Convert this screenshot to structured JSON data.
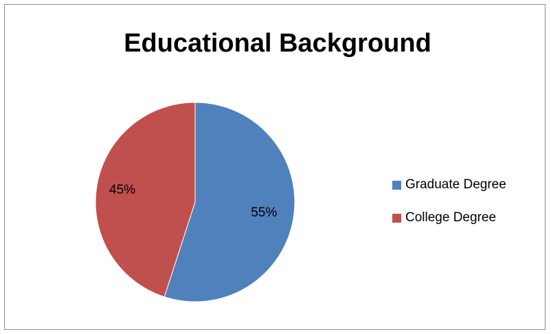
{
  "chart_data": {
    "type": "pie",
    "title": "Educational Background",
    "categories": [
      "Graduate Degree",
      "College Degree"
    ],
    "values": [
      55,
      45
    ],
    "value_labels": [
      "55%",
      "45%"
    ],
    "colors": [
      "#4f81bd",
      "#c0504d"
    ],
    "legend_position": "right"
  }
}
